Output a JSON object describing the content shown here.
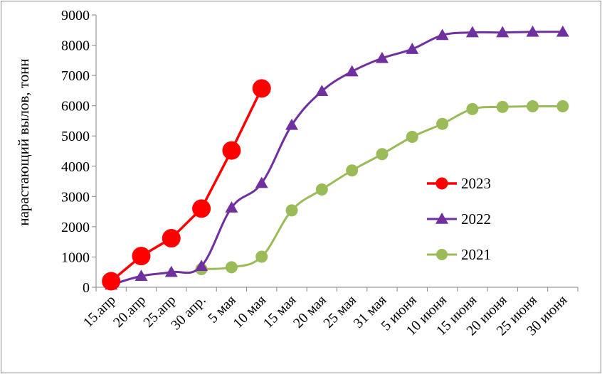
{
  "chart_data": {
    "type": "line",
    "categories": [
      "15.апр",
      "20.апр",
      "25.апр",
      "30 апр.",
      "5 мая",
      "10 мая",
      "15 мая",
      "20 мая",
      "25 мая",
      "31 мая",
      "5 июня",
      "10 июня",
      "15 июня",
      "20 июня",
      "25 июня",
      "30 июня"
    ],
    "ylabel": "нарастающий вылов, тонн",
    "xlabel": "",
    "ylim": [
      0,
      9000
    ],
    "yticks": [
      0,
      1000,
      2000,
      3000,
      4000,
      5000,
      6000,
      7000,
      8000,
      9000
    ],
    "grid": false,
    "legend_position": "right",
    "series": [
      {
        "name": "2023",
        "color": "#ff0000",
        "marker": "circle",
        "values": [
          200,
          1030,
          1620,
          2600,
          4520,
          6570,
          null,
          null,
          null,
          null,
          null,
          null,
          null,
          null,
          null,
          null
        ]
      },
      {
        "name": "2022",
        "color": "#7030a0",
        "marker": "triangle",
        "values": [
          80,
          370,
          500,
          700,
          2630,
          3440,
          5360,
          6480,
          7130,
          7570,
          7870,
          8330,
          8420,
          8420,
          8440,
          8440
        ]
      },
      {
        "name": "2021",
        "color": "#9bbb59",
        "marker": "circle",
        "values": [
          null,
          null,
          null,
          600,
          660,
          1010,
          2540,
          3230,
          3860,
          4400,
          4970,
          5400,
          5890,
          5960,
          5980,
          5980
        ]
      }
    ]
  }
}
